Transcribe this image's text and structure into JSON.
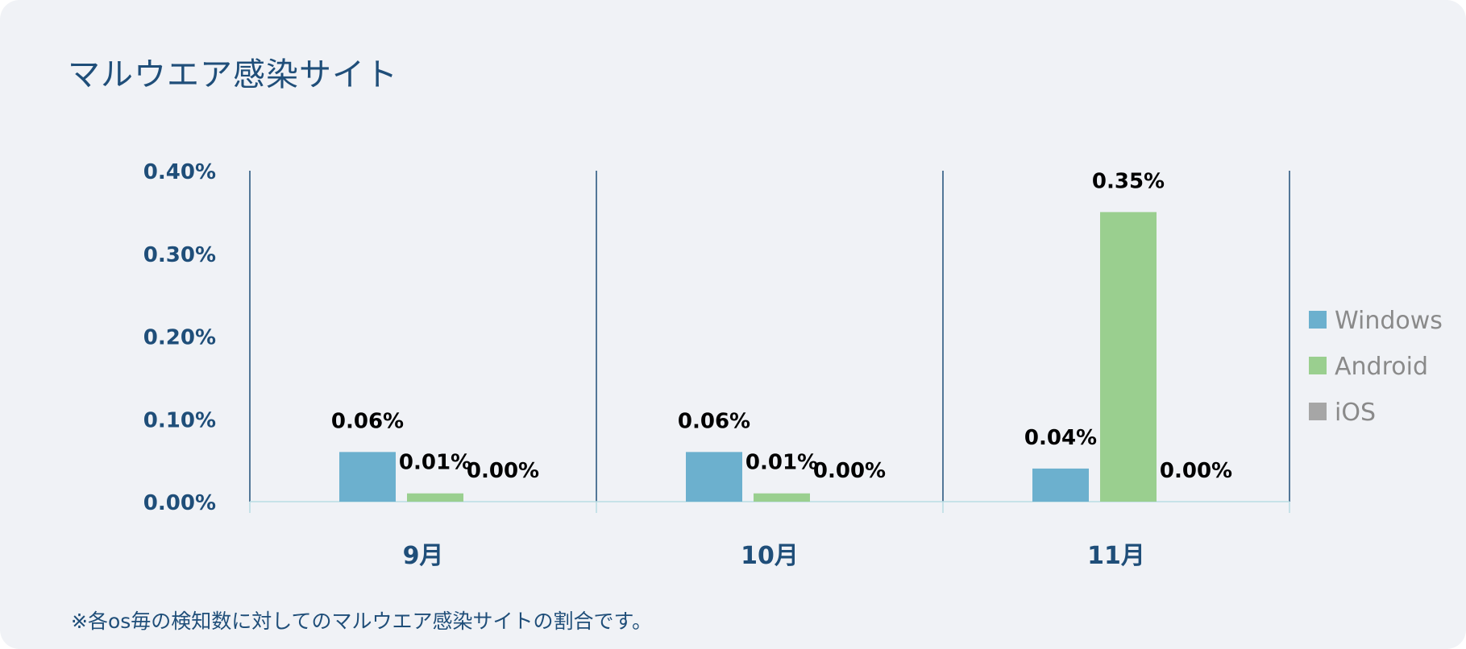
{
  "title": "マルウエア感染サイト",
  "footnote": "※各os毎の検知数に対してのマルウエア感染サイトの割合です。",
  "colors": {
    "Windows": "#6cb0ce",
    "Android": "#9acf8f",
    "iOS": "#a6a6a6",
    "axis_text": "#1f4e79",
    "divider": "#1f4e79",
    "baseline": "#b9dce3"
  },
  "chart_data": {
    "type": "bar",
    "categories": [
      "9月",
      "10月",
      "11月"
    ],
    "series": [
      {
        "name": "Windows",
        "values": [
          0.06,
          0.06,
          0.04
        ],
        "labels": [
          "0.06%",
          "0.06%",
          "0.04%"
        ]
      },
      {
        "name": "Android",
        "values": [
          0.01,
          0.01,
          0.35
        ],
        "labels": [
          "0.01%",
          "0.01%",
          "0.35%"
        ]
      },
      {
        "name": "iOS",
        "values": [
          0.0,
          0.0,
          0.0
        ],
        "labels": [
          "0.00%",
          "0.00%",
          "0.00%"
        ]
      }
    ],
    "ylim": [
      0,
      0.4
    ],
    "yticks": [
      0.0,
      0.1,
      0.2,
      0.3,
      0.4
    ],
    "ytick_labels": [
      "0.00%",
      "0.10%",
      "0.20%",
      "0.30%",
      "0.40%"
    ],
    "grid": false,
    "legend_position": "right"
  }
}
